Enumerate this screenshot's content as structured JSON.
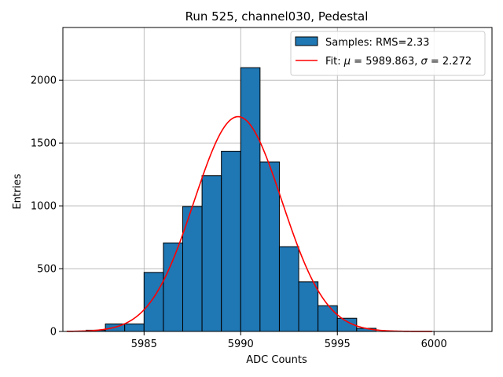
{
  "chart_data": {
    "type": "bar",
    "title": "Run 525, channel030, Pedestal",
    "xlabel": "ADC Counts",
    "ylabel": "Entries",
    "xlim": [
      5980.8,
      6003.0
    ],
    "ylim": [
      0,
      2420
    ],
    "grid": true,
    "legend_position": "top-right",
    "x_ticks": [
      5985,
      5990,
      5995,
      6000
    ],
    "y_ticks": [
      0,
      500,
      1000,
      1500,
      2000
    ],
    "bin_width": 1,
    "bins": [
      {
        "left": 5982,
        "count": 10
      },
      {
        "left": 5983,
        "count": 60
      },
      {
        "left": 5984,
        "count": 60
      },
      {
        "left": 5985,
        "count": 470
      },
      {
        "left": 5986,
        "count": 705
      },
      {
        "left": 5987,
        "count": 995
      },
      {
        "left": 5988,
        "count": 1240
      },
      {
        "left": 5989,
        "count": 1435
      },
      {
        "left": 5990,
        "count": 2100
      },
      {
        "left": 5991,
        "count": 1350
      },
      {
        "left": 5992,
        "count": 675
      },
      {
        "left": 5993,
        "count": 395
      },
      {
        "left": 5994,
        "count": 205
      },
      {
        "left": 5995,
        "count": 105
      },
      {
        "left": 5996,
        "count": 25
      }
    ],
    "fit": {
      "mu": 5989.863,
      "sigma": 2.272,
      "amplitude": 1710,
      "x_range": [
        5981,
        5999.9
      ]
    },
    "series": [
      {
        "name": "Samples: RMS=2.33",
        "color": "#1f77b4",
        "kind": "histogram"
      },
      {
        "name": "Fit: μ = 5989.863, σ = 2.272",
        "color": "#ff0000",
        "kind": "line"
      }
    ],
    "legend": {
      "samples_label": "Samples: RMS=2.33",
      "fit_prefix": "Fit: ",
      "fit_mu_symbol": "μ",
      "fit_mu_value": " = 5989.863, ",
      "fit_sigma_symbol": "σ",
      "fit_sigma_value": " = 2.272"
    }
  }
}
